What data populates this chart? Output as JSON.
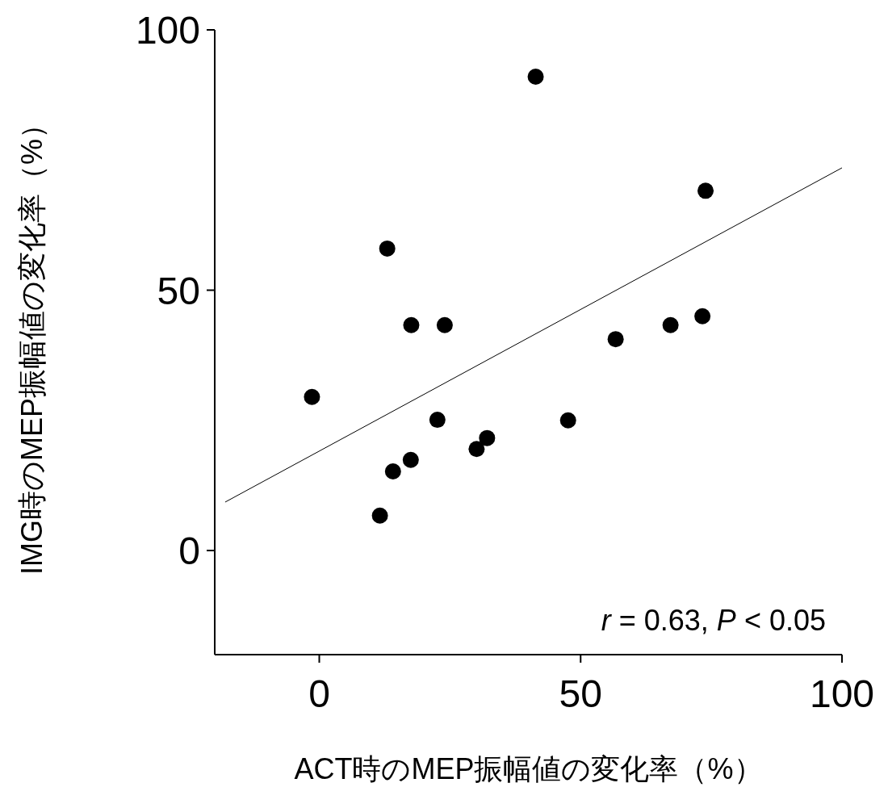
{
  "chart_data": {
    "type": "scatter",
    "xlabel": "ACT時のMEP振幅値の変化率（%）",
    "ylabel": "IMG時のMEP振幅値の変化率（%）",
    "xlim": [
      -20,
      100
    ],
    "xticks": [
      0,
      50,
      100
    ],
    "ylim": [
      -20,
      100
    ],
    "yticks": [
      0,
      50,
      100
    ],
    "grid": false,
    "series": [
      {
        "type": "scatter",
        "marker": "circle",
        "color": "#000000",
        "x": [
          -1.4,
          11.6,
          13,
          14.1,
          17.5,
          17.6,
          22.6,
          24,
          30.1,
          32.1,
          41.4,
          47.6,
          56.7,
          67.2,
          73.3,
          73.9
        ],
        "values": [
          29.5,
          6.7,
          58,
          15.2,
          17.4,
          43.3,
          25.1,
          43.3,
          19.5,
          21.6,
          91,
          25,
          40.6,
          43.3,
          45,
          69.1
        ]
      },
      {
        "type": "line",
        "color": "#000000",
        "line_style": "solid",
        "x": [
          -18,
          100
        ],
        "values": [
          9.3,
          73.5
        ]
      }
    ],
    "annotations": [
      "r = 0.63, P < 0.05"
    ]
  }
}
